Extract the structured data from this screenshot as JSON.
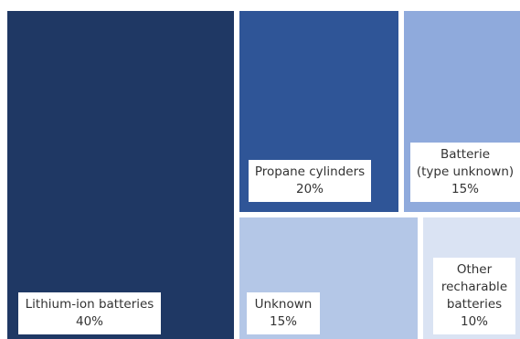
{
  "chart_data": {
    "type": "treemap",
    "title": "",
    "items": [
      {
        "name": "Lithium-ion batteries",
        "value_label": "40%",
        "value": 40,
        "color": "#1f3864"
      },
      {
        "name": "Propane cylinders",
        "value_label": "20%",
        "value": 20,
        "color": "#2f5597"
      },
      {
        "name": "Batterie\n(type unknown)",
        "value_label": "15%",
        "value": 15,
        "color": "#8faadc"
      },
      {
        "name": "Unknown",
        "value_label": "15%",
        "value": 15,
        "color": "#b4c7e7"
      },
      {
        "name": "Other\nrecharable\nbatteries",
        "value_label": "10%",
        "value": 10,
        "color": "#dae3f3"
      }
    ]
  }
}
